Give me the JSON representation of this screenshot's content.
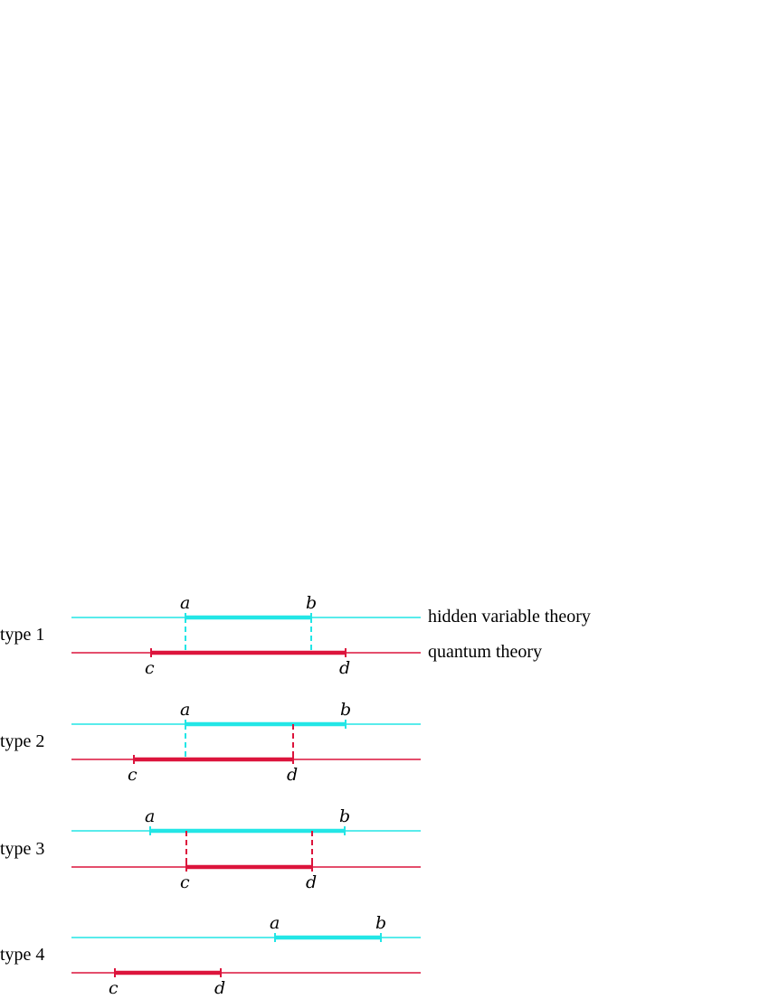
{
  "colors": {
    "hidden": "#22e6e6",
    "quantum": "#dc143c"
  },
  "legend": {
    "hidden_label": "hidden variable theory",
    "quantum_label": "quantum theory"
  },
  "types": [
    {
      "label": "type 1",
      "a": "a",
      "b": "b",
      "c": "c",
      "d": "d"
    },
    {
      "label": "type 2",
      "a": "a",
      "b": "b",
      "c": "c",
      "d": "d"
    },
    {
      "label": "type 3",
      "a": "a",
      "b": "b",
      "c": "c",
      "d": "d"
    },
    {
      "label": "type 4",
      "a": "a",
      "b": "b",
      "c": "c",
      "d": "d"
    }
  ]
}
